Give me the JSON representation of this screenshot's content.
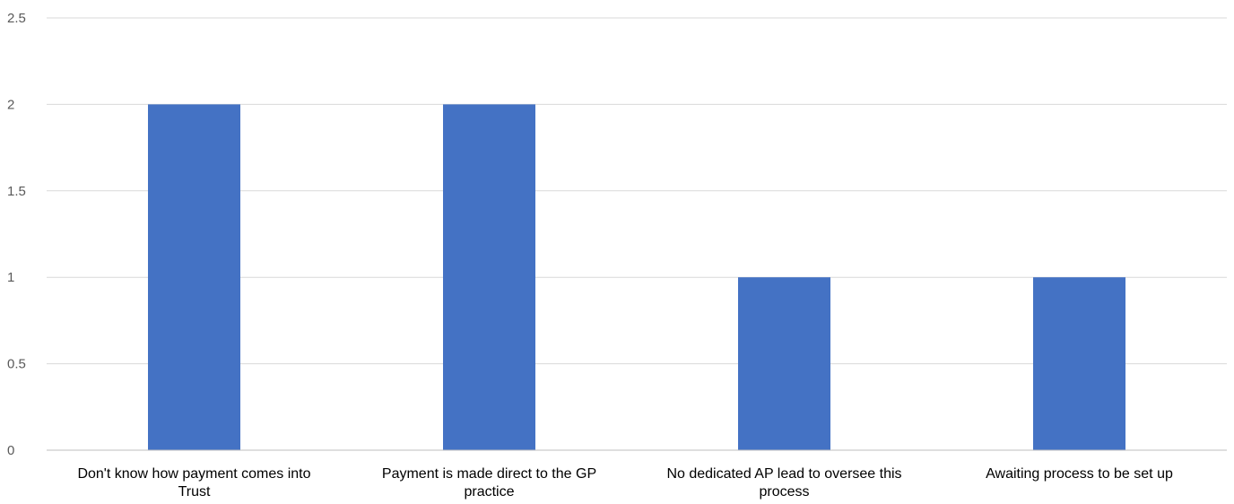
{
  "chart_data": {
    "type": "bar",
    "categories": [
      [
        "Don't know how payment comes into",
        "Trust"
      ],
      [
        "Payment is made direct to the GP",
        "practice"
      ],
      [
        "No dedicated AP lead to oversee this",
        "process"
      ],
      [
        "Awaiting process to be set up"
      ]
    ],
    "values": [
      2,
      2,
      1,
      1
    ],
    "ylim": [
      0,
      2.5
    ],
    "yticks": [
      "0",
      "0.5",
      "1",
      "1.5",
      "2",
      "2.5"
    ],
    "ytick_values": [
      0,
      0.5,
      1,
      1.5,
      2,
      2.5
    ],
    "grid": true,
    "colors": {
      "bar": "#4472C4"
    }
  }
}
